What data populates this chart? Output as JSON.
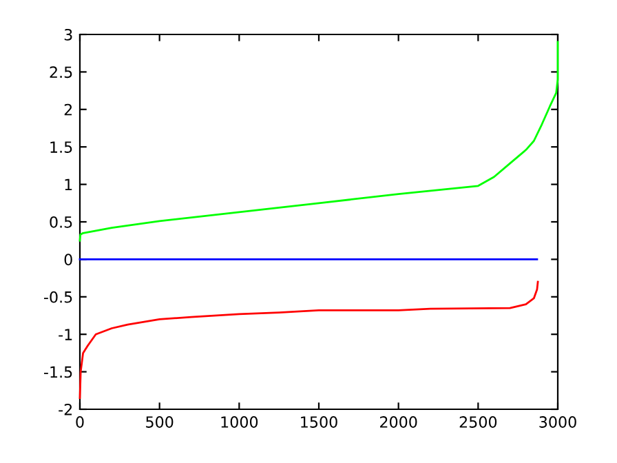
{
  "chart_data": {
    "type": "line",
    "xlim": [
      0,
      3000
    ],
    "ylim": [
      -2,
      3
    ],
    "xticks": [
      0,
      500,
      1000,
      1500,
      2000,
      2500,
      3000
    ],
    "yticks": [
      -2,
      -1.5,
      -1,
      -0.5,
      0,
      0.5,
      1,
      1.5,
      2,
      2.5,
      3
    ],
    "grid": false,
    "line_style": "solid",
    "series": [
      {
        "color": "#00ff00",
        "x": [
          0,
          3,
          20,
          200,
          500,
          1000,
          1500,
          2000,
          2500,
          2600,
          2700,
          2800,
          2850,
          2900,
          2950,
          2990,
          3000,
          3000
        ],
        "values": [
          0.25,
          0.33,
          0.35,
          0.42,
          0.51,
          0.63,
          0.75,
          0.87,
          0.98,
          1.1,
          1.28,
          1.46,
          1.58,
          1.8,
          2.04,
          2.22,
          2.4,
          2.9
        ]
      },
      {
        "color": "#0000ff",
        "x": [
          0,
          2870
        ],
        "values": [
          0,
          0
        ]
      },
      {
        "color": "#ff0000",
        "x": [
          0,
          5,
          20,
          50,
          100,
          200,
          300,
          500,
          700,
          1000,
          1250,
          1500,
          2000,
          2200,
          2700,
          2800,
          2850,
          2870,
          2875
        ],
        "values": [
          -1.85,
          -1.5,
          -1.25,
          -1.15,
          -1.0,
          -0.92,
          -0.87,
          -0.8,
          -0.77,
          -0.73,
          -0.71,
          -0.68,
          -0.68,
          -0.66,
          -0.65,
          -0.6,
          -0.52,
          -0.4,
          -0.3
        ]
      }
    ]
  }
}
